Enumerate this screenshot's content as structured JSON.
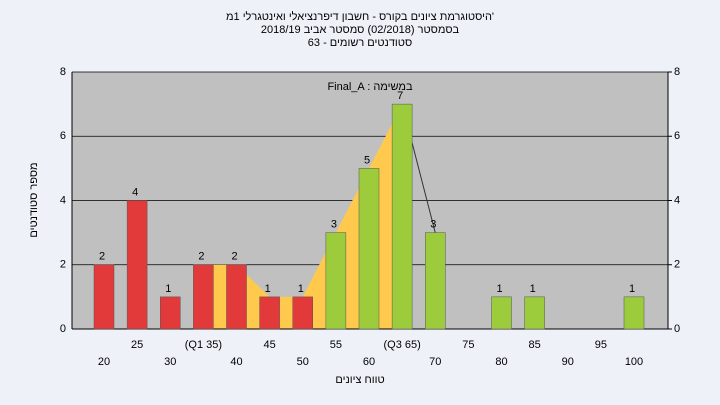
{
  "chart_data": {
    "type": "bar",
    "title": "'היסטוגרמת ציונים בקורס - חשבון דיפרנציאלי ואינטגרלי 1מ",
    "subtitle": [
      "בסמסטר  (02/2018)  סמסטר אביב 2018/19",
      "סטודנטים רשומים - 63"
    ],
    "annotation": "Final_A : במשימה",
    "x_label": "טווח ציונים",
    "y_label": "מספר סטודנטים",
    "categories": [
      "20",
      "25",
      "30",
      "(Q1 35)",
      "40",
      "45",
      "50",
      "55",
      "60",
      "(Q3 65)",
      "70",
      "75",
      "80",
      "85",
      "90",
      "95",
      "100"
    ],
    "values": [
      2,
      4,
      1,
      2,
      2,
      1,
      1,
      3,
      5,
      7,
      3,
      0,
      1,
      1,
      0,
      0,
      1
    ],
    "colors": [
      "#e23a3a",
      "#e23a3a",
      "#e23a3a",
      "#e23a3a",
      "#e23a3a",
      "#e23a3a",
      "#e23a3a",
      "#9ccc3c",
      "#9ccc3c",
      "#9ccc3c",
      "#9ccc3c",
      "#9ccc3c",
      "#9ccc3c",
      "#9ccc3c",
      "#9ccc3c",
      "#9ccc3c",
      "#9ccc3c"
    ],
    "ylim": [
      0,
      8
    ],
    "yticks": [
      0,
      2,
      4,
      6,
      8
    ],
    "y2lim": [
      0,
      8
    ],
    "y2ticks": [
      0,
      2,
      4,
      6,
      8
    ],
    "grid": true
  }
}
